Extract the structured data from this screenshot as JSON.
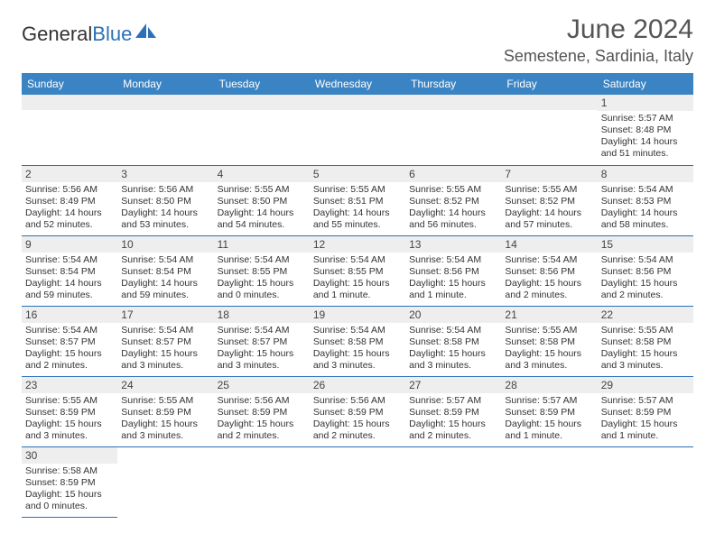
{
  "logo": {
    "text1": "General",
    "text2": "Blue",
    "accent_color": "#2a71b8"
  },
  "title": "June 2024",
  "location": "Semestene, Sardinia, Italy",
  "colors": {
    "header_bg": "#3b84c4",
    "header_text": "#ffffff",
    "daynum_bg": "#eeeeee",
    "border": "#2a71b8",
    "text": "#333333"
  },
  "font": {
    "family": "Arial",
    "title_size": 30,
    "location_size": 18,
    "dayhead_size": 12,
    "daynum_size": 12,
    "detail_size": 10.5
  },
  "day_headers": [
    "Sunday",
    "Monday",
    "Tuesday",
    "Wednesday",
    "Thursday",
    "Friday",
    "Saturday"
  ],
  "weeks": [
    [
      null,
      null,
      null,
      null,
      null,
      null,
      {
        "n": "1",
        "sunrise": "Sunrise: 5:57 AM",
        "sunset": "Sunset: 8:48 PM",
        "daylight": "Daylight: 14 hours and 51 minutes."
      }
    ],
    [
      {
        "n": "2",
        "sunrise": "Sunrise: 5:56 AM",
        "sunset": "Sunset: 8:49 PM",
        "daylight": "Daylight: 14 hours and 52 minutes."
      },
      {
        "n": "3",
        "sunrise": "Sunrise: 5:56 AM",
        "sunset": "Sunset: 8:50 PM",
        "daylight": "Daylight: 14 hours and 53 minutes."
      },
      {
        "n": "4",
        "sunrise": "Sunrise: 5:55 AM",
        "sunset": "Sunset: 8:50 PM",
        "daylight": "Daylight: 14 hours and 54 minutes."
      },
      {
        "n": "5",
        "sunrise": "Sunrise: 5:55 AM",
        "sunset": "Sunset: 8:51 PM",
        "daylight": "Daylight: 14 hours and 55 minutes."
      },
      {
        "n": "6",
        "sunrise": "Sunrise: 5:55 AM",
        "sunset": "Sunset: 8:52 PM",
        "daylight": "Daylight: 14 hours and 56 minutes."
      },
      {
        "n": "7",
        "sunrise": "Sunrise: 5:55 AM",
        "sunset": "Sunset: 8:52 PM",
        "daylight": "Daylight: 14 hours and 57 minutes."
      },
      {
        "n": "8",
        "sunrise": "Sunrise: 5:54 AM",
        "sunset": "Sunset: 8:53 PM",
        "daylight": "Daylight: 14 hours and 58 minutes."
      }
    ],
    [
      {
        "n": "9",
        "sunrise": "Sunrise: 5:54 AM",
        "sunset": "Sunset: 8:54 PM",
        "daylight": "Daylight: 14 hours and 59 minutes."
      },
      {
        "n": "10",
        "sunrise": "Sunrise: 5:54 AM",
        "sunset": "Sunset: 8:54 PM",
        "daylight": "Daylight: 14 hours and 59 minutes."
      },
      {
        "n": "11",
        "sunrise": "Sunrise: 5:54 AM",
        "sunset": "Sunset: 8:55 PM",
        "daylight": "Daylight: 15 hours and 0 minutes."
      },
      {
        "n": "12",
        "sunrise": "Sunrise: 5:54 AM",
        "sunset": "Sunset: 8:55 PM",
        "daylight": "Daylight: 15 hours and 1 minute."
      },
      {
        "n": "13",
        "sunrise": "Sunrise: 5:54 AM",
        "sunset": "Sunset: 8:56 PM",
        "daylight": "Daylight: 15 hours and 1 minute."
      },
      {
        "n": "14",
        "sunrise": "Sunrise: 5:54 AM",
        "sunset": "Sunset: 8:56 PM",
        "daylight": "Daylight: 15 hours and 2 minutes."
      },
      {
        "n": "15",
        "sunrise": "Sunrise: 5:54 AM",
        "sunset": "Sunset: 8:56 PM",
        "daylight": "Daylight: 15 hours and 2 minutes."
      }
    ],
    [
      {
        "n": "16",
        "sunrise": "Sunrise: 5:54 AM",
        "sunset": "Sunset: 8:57 PM",
        "daylight": "Daylight: 15 hours and 2 minutes."
      },
      {
        "n": "17",
        "sunrise": "Sunrise: 5:54 AM",
        "sunset": "Sunset: 8:57 PM",
        "daylight": "Daylight: 15 hours and 3 minutes."
      },
      {
        "n": "18",
        "sunrise": "Sunrise: 5:54 AM",
        "sunset": "Sunset: 8:57 PM",
        "daylight": "Daylight: 15 hours and 3 minutes."
      },
      {
        "n": "19",
        "sunrise": "Sunrise: 5:54 AM",
        "sunset": "Sunset: 8:58 PM",
        "daylight": "Daylight: 15 hours and 3 minutes."
      },
      {
        "n": "20",
        "sunrise": "Sunrise: 5:54 AM",
        "sunset": "Sunset: 8:58 PM",
        "daylight": "Daylight: 15 hours and 3 minutes."
      },
      {
        "n": "21",
        "sunrise": "Sunrise: 5:55 AM",
        "sunset": "Sunset: 8:58 PM",
        "daylight": "Daylight: 15 hours and 3 minutes."
      },
      {
        "n": "22",
        "sunrise": "Sunrise: 5:55 AM",
        "sunset": "Sunset: 8:58 PM",
        "daylight": "Daylight: 15 hours and 3 minutes."
      }
    ],
    [
      {
        "n": "23",
        "sunrise": "Sunrise: 5:55 AM",
        "sunset": "Sunset: 8:59 PM",
        "daylight": "Daylight: 15 hours and 3 minutes."
      },
      {
        "n": "24",
        "sunrise": "Sunrise: 5:55 AM",
        "sunset": "Sunset: 8:59 PM",
        "daylight": "Daylight: 15 hours and 3 minutes."
      },
      {
        "n": "25",
        "sunrise": "Sunrise: 5:56 AM",
        "sunset": "Sunset: 8:59 PM",
        "daylight": "Daylight: 15 hours and 2 minutes."
      },
      {
        "n": "26",
        "sunrise": "Sunrise: 5:56 AM",
        "sunset": "Sunset: 8:59 PM",
        "daylight": "Daylight: 15 hours and 2 minutes."
      },
      {
        "n": "27",
        "sunrise": "Sunrise: 5:57 AM",
        "sunset": "Sunset: 8:59 PM",
        "daylight": "Daylight: 15 hours and 2 minutes."
      },
      {
        "n": "28",
        "sunrise": "Sunrise: 5:57 AM",
        "sunset": "Sunset: 8:59 PM",
        "daylight": "Daylight: 15 hours and 1 minute."
      },
      {
        "n": "29",
        "sunrise": "Sunrise: 5:57 AM",
        "sunset": "Sunset: 8:59 PM",
        "daylight": "Daylight: 15 hours and 1 minute."
      }
    ],
    [
      {
        "n": "30",
        "sunrise": "Sunrise: 5:58 AM",
        "sunset": "Sunset: 8:59 PM",
        "daylight": "Daylight: 15 hours and 0 minutes."
      },
      null,
      null,
      null,
      null,
      null,
      null
    ]
  ]
}
